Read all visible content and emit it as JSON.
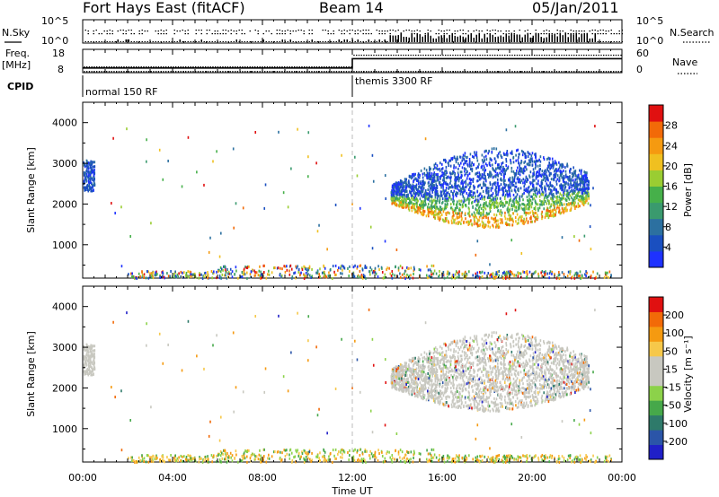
{
  "header": {
    "radar_title": "Fort Hays East (fitACF)",
    "beam": "Beam 14",
    "date": "05/Jan/2011"
  },
  "top_panels": {
    "nsky_label": "N.Sky",
    "nsearch_label": "N.Search",
    "nsky_tick_top": "10^5",
    "nsky_tick_bottom": "10^0",
    "freq_label_line1": "Freq.",
    "freq_label_line2": "[MHz]",
    "freq_ticks": [
      "18",
      "8"
    ],
    "nave_label": "Nave",
    "nave_ticks": [
      "60",
      "0"
    ],
    "cpid_label": "CPID",
    "modes": [
      {
        "label": "normal 150 RF",
        "start_hour": 0,
        "freq_mhz": 10,
        "nave": 15
      },
      {
        "label": "themis 3300 RF",
        "start_hour": 12,
        "freq_mhz": 14,
        "nave": 45
      }
    ]
  },
  "chart_data": [
    {
      "type": "heatmap",
      "name": "power",
      "xlabel": "Time UT",
      "ylabel": "Slant Range [km]",
      "xlim": [
        0,
        24
      ],
      "ylim": [
        180,
        4500
      ],
      "yticks": [
        1000,
        2000,
        3000,
        4000
      ],
      "colorbar_label": "Power [dB]",
      "colorbar_ticks": [
        "4",
        "8",
        "12",
        "16",
        "20",
        "24",
        "28"
      ],
      "colorbar_colors": [
        "#1e32ff",
        "#1a4fc0",
        "#2c70a0",
        "#3a9a6e",
        "#46b04a",
        "#9acd32",
        "#f0c020",
        "#f59a10",
        "#f26a08",
        "#e01010"
      ],
      "scatter_regions": [
        {
          "t": [
            0.0,
            0.5
          ],
          "r": [
            2300,
            3100
          ],
          "level": 0.15
        },
        {
          "t": [
            13.7,
            22.5
          ],
          "r": [
            1400,
            3400
          ],
          "level": 0.55
        },
        {
          "t": [
            0.5,
            24.0
          ],
          "r": [
            200,
            450
          ],
          "level": 0.2
        }
      ]
    },
    {
      "type": "heatmap",
      "name": "velocity",
      "xlabel": "Time UT",
      "ylabel": "Slant Range [km]",
      "xlim": [
        0,
        24
      ],
      "ylim": [
        180,
        4500
      ],
      "yticks": [
        1000,
        2000,
        3000,
        4000
      ],
      "colorbar_label": "Velocity [m s⁻¹]",
      "colorbar_ticks": [
        "200",
        "100",
        "50",
        "15",
        "-15",
        "-50",
        "-100",
        "-200"
      ],
      "colorbar_colors": [
        "#2020c8",
        "#2b55a8",
        "#2e7a6a",
        "#46a84a",
        "#8cd24a",
        "#c8c8c0",
        "#c8c8c0",
        "#f6c84a",
        "#f59a10",
        "#f26a08",
        "#e01010"
      ]
    }
  ],
  "x_ticks": [
    "00:00",
    "04:00",
    "08:00",
    "12:00",
    "16:00",
    "20:00",
    "00:00"
  ],
  "x_axis_label": "Time UT",
  "colors": {
    "dashed_marker": "#bbbbbb"
  }
}
